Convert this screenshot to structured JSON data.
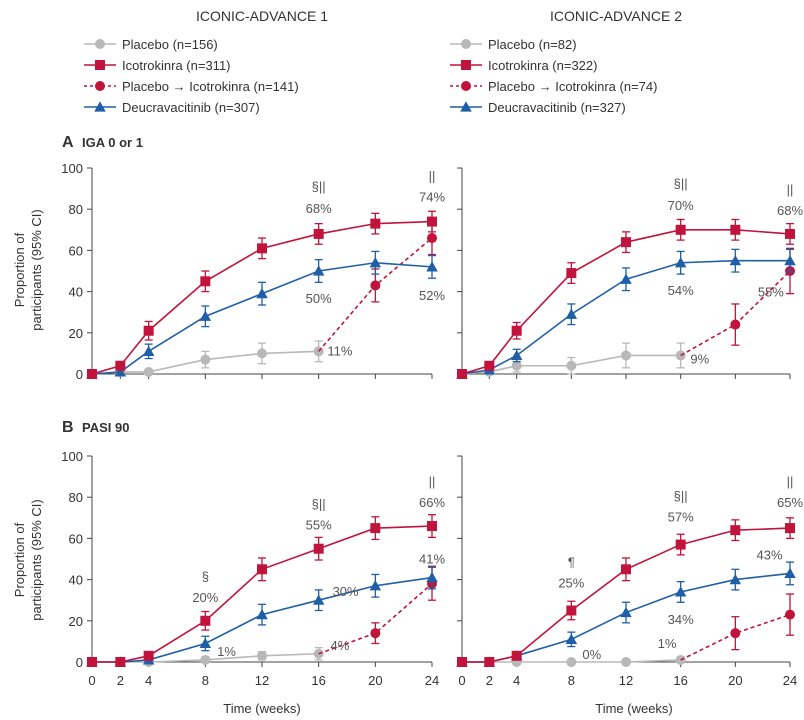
{
  "columns": [
    "ICONIC-ADVANCE 1",
    "ICONIC-ADVANCE 2"
  ],
  "legends": [
    {
      "items": [
        {
          "marker": "circle",
          "color": "#b8b8b8",
          "dashed": false,
          "label": "Placebo (n=156)"
        },
        {
          "marker": "square",
          "color": "#c0143c",
          "dashed": false,
          "label": "Icotrokinra (n=311)"
        },
        {
          "marker": "circle",
          "color": "#c0143c",
          "dashed": true,
          "label": "Placebo → Icotrokinra (n=141)"
        },
        {
          "marker": "triangle",
          "color": "#1f5fa8",
          "dashed": false,
          "label": "Deucravacitinib (n=307)"
        }
      ]
    },
    {
      "items": [
        {
          "marker": "circle",
          "color": "#b8b8b8",
          "dashed": false,
          "label": "Placebo (n=82)"
        },
        {
          "marker": "square",
          "color": "#c0143c",
          "dashed": false,
          "label": "Icotrokinra (n=322)"
        },
        {
          "marker": "circle",
          "color": "#c0143c",
          "dashed": true,
          "label": "Placebo → Icotrokinra (n=74)"
        },
        {
          "marker": "triangle",
          "color": "#1f5fa8",
          "dashed": false,
          "label": "Deucravacitinib (n=327)"
        }
      ]
    }
  ],
  "panels": [
    {
      "letter": "A",
      "title": "IGA 0 or 1"
    },
    {
      "letter": "B",
      "title": "PASI 90"
    }
  ],
  "axes": {
    "ylabel_line1": "Proportion of",
    "ylabel_line2": "participants (95% CI)",
    "xlabel": "Time (weeks)",
    "xticks": [
      0,
      2,
      4,
      8,
      12,
      16,
      20,
      24
    ],
    "yticks": [
      0,
      20,
      40,
      60,
      80,
      100
    ],
    "xlim": [
      0,
      24
    ],
    "ylim": [
      0,
      100
    ]
  },
  "colors": {
    "placebo": "#b8b8b8",
    "icotrokinra": "#c0143c",
    "switch": "#c0143c",
    "deucravacitinib": "#1f5fa8",
    "axis": "#444444",
    "text": "#333333"
  },
  "chart_data": [
    {
      "type": "line",
      "study": "ICONIC-ADVANCE 1",
      "panel": "A",
      "endpoint": "IGA 0 or 1",
      "xlabel": "",
      "ylabel": "Proportion of participants (95% CI)",
      "xlim": [
        0,
        24
      ],
      "ylim": [
        0,
        100
      ],
      "grid": false,
      "series": [
        {
          "name": "Icotrokinra (n=311)",
          "key": "icotrokinra",
          "marker": "square",
          "dashed": false,
          "x": [
            0,
            2,
            4,
            8,
            12,
            16,
            20,
            24
          ],
          "y": [
            0,
            4,
            21,
            45,
            61,
            68,
            73,
            74
          ],
          "err": [
            0,
            1.5,
            4.5,
            5,
            5,
            5,
            5,
            5
          ]
        },
        {
          "name": "Deucravacitinib (n=307)",
          "key": "deucravacitinib",
          "marker": "triangle",
          "dashed": false,
          "x": [
            0,
            2,
            4,
            8,
            12,
            16,
            20,
            24
          ],
          "y": [
            0,
            1,
            11,
            28,
            39,
            50,
            54,
            52
          ],
          "err": [
            0,
            1,
            3.5,
            5,
            5.5,
            5.5,
            5.5,
            5.5
          ]
        },
        {
          "name": "Placebo (n=156)",
          "key": "placebo",
          "marker": "circle",
          "dashed": false,
          "x": [
            0,
            2,
            4,
            8,
            12,
            16
          ],
          "y": [
            0,
            1,
            1,
            7,
            10,
            11
          ],
          "err": [
            0,
            1,
            1,
            4,
            5,
            5
          ]
        },
        {
          "name": "Placebo → Icotrokinra (n=141)",
          "key": "switch",
          "marker": "circle",
          "dashed": true,
          "x": [
            16,
            20,
            24
          ],
          "y": [
            11,
            43,
            66
          ],
          "err": [
            0,
            8,
            8
          ]
        }
      ],
      "annotations": [
        {
          "text": "§||",
          "x": 16,
          "y": 68,
          "dy": -43
        },
        {
          "text": "68%",
          "x": 16,
          "y": 68,
          "dy": -21
        },
        {
          "text": "||",
          "x": 24,
          "y": 74,
          "dy": -41
        },
        {
          "text": "74%",
          "x": 24,
          "y": 74,
          "dy": -20
        },
        {
          "text": "50%",
          "x": 16,
          "y": 50,
          "dy": 32
        },
        {
          "text": "52%",
          "x": 24,
          "y": 52,
          "dy": 33
        },
        {
          "text": "11%",
          "x": 17.5,
          "y": 11,
          "dy": 4
        }
      ]
    },
    {
      "type": "line",
      "study": "ICONIC-ADVANCE 2",
      "panel": "A",
      "endpoint": "IGA 0 or 1",
      "xlabel": "",
      "ylabel": "",
      "xlim": [
        0,
        24
      ],
      "ylim": [
        0,
        100
      ],
      "grid": false,
      "series": [
        {
          "name": "Icotrokinra (n=322)",
          "key": "icotrokinra",
          "marker": "square",
          "dashed": false,
          "x": [
            0,
            2,
            4,
            8,
            12,
            16,
            20,
            24
          ],
          "y": [
            0,
            4,
            21,
            49,
            64,
            70,
            70,
            68
          ],
          "err": [
            0,
            1.5,
            4,
            5,
            5,
            5,
            5,
            5
          ]
        },
        {
          "name": "Deucravacitinib (n=327)",
          "key": "deucravacitinib",
          "marker": "triangle",
          "dashed": false,
          "x": [
            0,
            2,
            4,
            8,
            12,
            16,
            20,
            24
          ],
          "y": [
            0,
            2,
            9,
            29,
            46,
            54,
            55,
            55
          ],
          "err": [
            0,
            1,
            3,
            5,
            5.5,
            5.5,
            5.5,
            5.5
          ]
        },
        {
          "name": "Placebo (n=82)",
          "key": "placebo",
          "marker": "circle",
          "dashed": false,
          "x": [
            0,
            2,
            4,
            8,
            12,
            16
          ],
          "y": [
            0,
            1,
            4,
            4,
            9,
            9
          ],
          "err": [
            0,
            1,
            3,
            4,
            6,
            6
          ]
        },
        {
          "name": "Placebo → Icotrokinra (n=74)",
          "key": "switch",
          "marker": "circle",
          "dashed": true,
          "x": [
            16,
            20,
            24
          ],
          "y": [
            9,
            24,
            50
          ],
          "err": [
            0,
            10,
            11
          ]
        }
      ],
      "annotations": [
        {
          "text": "§||",
          "x": 16,
          "y": 70,
          "dy": -42
        },
        {
          "text": "70%",
          "x": 16,
          "y": 70,
          "dy": -20
        },
        {
          "text": "||",
          "x": 24,
          "y": 68,
          "dy": -40
        },
        {
          "text": "68%",
          "x": 24,
          "y": 68,
          "dy": -19
        },
        {
          "text": "54%",
          "x": 16,
          "y": 54,
          "dy": 32
        },
        {
          "text": "55%",
          "x": 22.6,
          "y": 55,
          "dy": 36
        },
        {
          "text": "9%",
          "x": 17.4,
          "y": 9,
          "dy": 8
        }
      ]
    },
    {
      "type": "line",
      "study": "ICONIC-ADVANCE 1",
      "panel": "B",
      "endpoint": "PASI 90",
      "xlabel": "Time (weeks)",
      "ylabel": "Proportion of participants (95% CI)",
      "xlim": [
        0,
        24
      ],
      "ylim": [
        0,
        100
      ],
      "grid": false,
      "series": [
        {
          "name": "Icotrokinra (n=311)",
          "key": "icotrokinra",
          "marker": "square",
          "dashed": false,
          "x": [
            0,
            2,
            4,
            8,
            12,
            16,
            20,
            24
          ],
          "y": [
            0,
            0,
            3,
            20,
            45,
            55,
            65,
            66
          ],
          "err": [
            0,
            0.5,
            1.5,
            4.5,
            5.5,
            5.5,
            5.5,
            5.5
          ]
        },
        {
          "name": "Deucravacitinib (n=307)",
          "key": "deucravacitinib",
          "marker": "triangle",
          "dashed": false,
          "x": [
            0,
            2,
            4,
            8,
            12,
            16,
            20,
            24
          ],
          "y": [
            0,
            0,
            1,
            9,
            23,
            30,
            37,
            41
          ],
          "err": [
            0,
            0.5,
            1,
            3.5,
            5,
            5,
            5.5,
            5.5
          ]
        },
        {
          "name": "Placebo (n=156)",
          "key": "placebo",
          "marker": "circle",
          "dashed": false,
          "x": [
            0,
            2,
            4,
            8,
            12,
            16
          ],
          "y": [
            0,
            0,
            0,
            1,
            3,
            4
          ],
          "err": [
            0,
            0,
            0.5,
            1.5,
            2,
            3
          ]
        },
        {
          "name": "Placebo → Icotrokinra (n=141)",
          "key": "switch",
          "marker": "circle",
          "dashed": true,
          "x": [
            16,
            20,
            24
          ],
          "y": [
            4,
            14,
            38
          ],
          "err": [
            0,
            5,
            8
          ]
        }
      ],
      "annotations": [
        {
          "text": "§",
          "x": 8,
          "y": 20,
          "dy": -40
        },
        {
          "text": "20%",
          "x": 8,
          "y": 20,
          "dy": -19
        },
        {
          "text": "§||",
          "x": 16,
          "y": 55,
          "dy": -40
        },
        {
          "text": "55%",
          "x": 16,
          "y": 55,
          "dy": -19
        },
        {
          "text": "||",
          "x": 24,
          "y": 66,
          "dy": -40
        },
        {
          "text": "66%",
          "x": 24,
          "y": 66,
          "dy": -19
        },
        {
          "text": "30%",
          "x": 17.9,
          "y": 30,
          "dy": -4
        },
        {
          "text": "41%",
          "x": 24,
          "y": 41,
          "dy": -14
        },
        {
          "text": "1%",
          "x": 9.5,
          "y": 1,
          "dy": -4
        },
        {
          "text": "4%",
          "x": 17.5,
          "y": 4,
          "dy": -4
        }
      ]
    },
    {
      "type": "line",
      "study": "ICONIC-ADVANCE 2",
      "panel": "B",
      "endpoint": "PASI 90",
      "xlabel": "Time (weeks)",
      "ylabel": "",
      "xlim": [
        0,
        24
      ],
      "ylim": [
        0,
        100
      ],
      "grid": false,
      "series": [
        {
          "name": "Icotrokinra (n=322)",
          "key": "icotrokinra",
          "marker": "square",
          "dashed": false,
          "x": [
            0,
            2,
            4,
            8,
            12,
            16,
            20,
            24
          ],
          "y": [
            0,
            0,
            3,
            25,
            45,
            57,
            64,
            65
          ],
          "err": [
            0,
            0.5,
            1.5,
            4.5,
            5.5,
            5,
            5,
            5
          ]
        },
        {
          "name": "Deucravacitinib (n=327)",
          "key": "deucravacitinib",
          "marker": "triangle",
          "dashed": false,
          "x": [
            0,
            2,
            4,
            8,
            12,
            16,
            20,
            24
          ],
          "y": [
            0,
            0,
            3,
            11,
            24,
            34,
            40,
            43
          ],
          "err": [
            0,
            0.5,
            1.5,
            3.5,
            5,
            5,
            5,
            5.5
          ]
        },
        {
          "name": "Placebo (n=82)",
          "key": "placebo",
          "marker": "circle",
          "dashed": false,
          "x": [
            0,
            2,
            4,
            8,
            12,
            16
          ],
          "y": [
            0,
            0,
            0,
            0,
            0,
            1
          ],
          "err": [
            0,
            0,
            0,
            0,
            0,
            1.5
          ]
        },
        {
          "name": "Placebo → Icotrokinra (n=74)",
          "key": "switch",
          "marker": "circle",
          "dashed": true,
          "x": [
            16,
            20,
            24
          ],
          "y": [
            1,
            14,
            23
          ],
          "err": [
            0,
            8,
            10
          ]
        }
      ],
      "annotations": [
        {
          "text": "¶",
          "x": 8,
          "y": 25,
          "dy": -44
        },
        {
          "text": "25%",
          "x": 8,
          "y": 25,
          "dy": -23
        },
        {
          "text": "§||",
          "x": 16,
          "y": 57,
          "dy": -44
        },
        {
          "text": "57%",
          "x": 16,
          "y": 57,
          "dy": -23
        },
        {
          "text": "||",
          "x": 24,
          "y": 65,
          "dy": -42
        },
        {
          "text": "65%",
          "x": 24,
          "y": 65,
          "dy": -21
        },
        {
          "text": "34%",
          "x": 16,
          "y": 34,
          "dy": 32
        },
        {
          "text": "43%",
          "x": 22.5,
          "y": 43,
          "dy": -14
        },
        {
          "text": "0%",
          "x": 9.5,
          "y": 0,
          "dy": -3
        },
        {
          "text": "1%",
          "x": 15,
          "y": 1,
          "dy": -12
        }
      ]
    }
  ]
}
